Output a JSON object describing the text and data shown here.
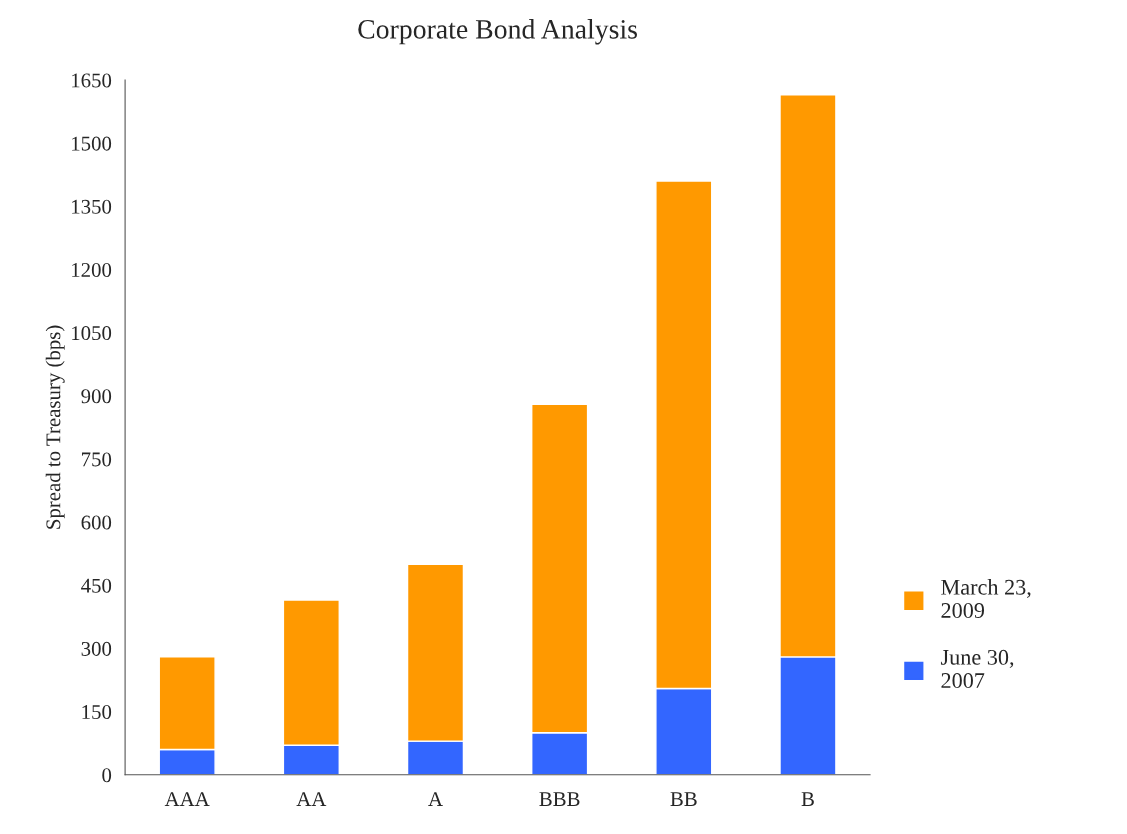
{
  "chart_data": {
    "type": "bar",
    "title": "Corporate Bond Analysis",
    "ylabel": "Spread to Treasury (bps)",
    "categories": [
      "AAA",
      "AA",
      "A",
      "BBB",
      "BB",
      "B"
    ],
    "stacked": true,
    "series": [
      {
        "name": "June 30,\n2007",
        "color": "#3366ff",
        "values": [
          60,
          70,
          80,
          100,
          205,
          280
        ]
      },
      {
        "name": "March 23,\n2009",
        "color": "#ff9900",
        "values": [
          220,
          345,
          420,
          780,
          1205,
          1335
        ]
      }
    ],
    "ylim": [
      0,
      1650
    ],
    "yticks": [
      0,
      150,
      300,
      450,
      600,
      750,
      900,
      1050,
      1200,
      1350,
      1500,
      1650
    ],
    "grid": false,
    "legend": "right"
  }
}
